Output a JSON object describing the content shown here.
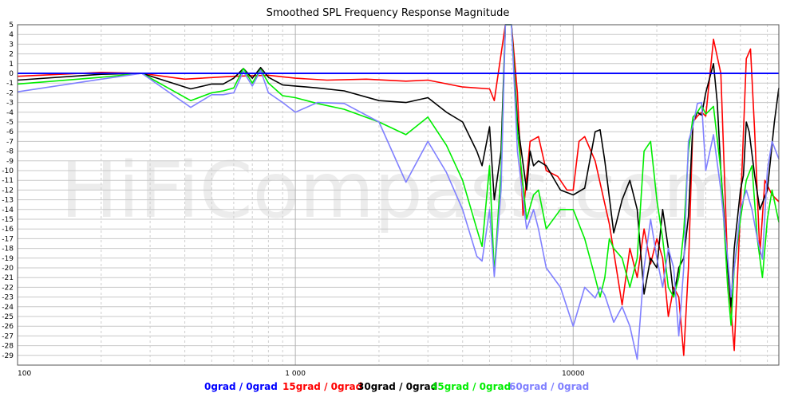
{
  "chart_data": {
    "type": "line",
    "title": "Smoothed SPL Frequency Response Magnitude",
    "watermark": "HiFiCompass.com",
    "xscale": "log",
    "xlim": [
      100,
      55000
    ],
    "ylim": [
      -30,
      5
    ],
    "x_tick_labels": [
      {
        "x": 100,
        "label": "100"
      },
      {
        "x": 1000,
        "label": "1 000"
      },
      {
        "x": 10000,
        "label": "10000"
      }
    ],
    "y_ticks": [
      5,
      4,
      3,
      2,
      1,
      0,
      -1,
      -2,
      -3,
      -4,
      -5,
      -6,
      -7,
      -8,
      -9,
      -10,
      -11,
      -12,
      -13,
      -14,
      -15,
      -16,
      -17,
      -18,
      -19,
      -20,
      -21,
      -22,
      -23,
      -24,
      -25,
      -26,
      -27,
      -28,
      -29
    ],
    "grid": true,
    "legend_position": "bottom",
    "series": [
      {
        "name": "0grad / 0grad",
        "color": "#0000ff",
        "points": [
          [
            100,
            0
          ],
          [
            55000,
            0
          ]
        ]
      },
      {
        "name": "15grad / 0grad",
        "color": "#ff0000",
        "points": [
          [
            100,
            -0.3
          ],
          [
            200,
            0.1
          ],
          [
            280,
            0
          ],
          [
            400,
            -0.6
          ],
          [
            600,
            -0.3
          ],
          [
            800,
            -0.2
          ],
          [
            1000,
            -0.5
          ],
          [
            1300,
            -0.7
          ],
          [
            1800,
            -0.6
          ],
          [
            2500,
            -0.8
          ],
          [
            3000,
            -0.7
          ],
          [
            4000,
            -1.4
          ],
          [
            5000,
            -1.6
          ],
          [
            5200,
            -2.8
          ],
          [
            5700,
            5
          ],
          [
            6000,
            5
          ],
          [
            6300,
            -2
          ],
          [
            6600,
            -14.6
          ],
          [
            7000,
            -7
          ],
          [
            7500,
            -6.5
          ],
          [
            8000,
            -10
          ],
          [
            8800,
            -10.6
          ],
          [
            9500,
            -12
          ],
          [
            10000,
            -12
          ],
          [
            10500,
            -7
          ],
          [
            11000,
            -6.5
          ],
          [
            12000,
            -9
          ],
          [
            13500,
            -15.5
          ],
          [
            15000,
            -23.8
          ],
          [
            16000,
            -18
          ],
          [
            17000,
            -21
          ],
          [
            18000,
            -16
          ],
          [
            19000,
            -19.6
          ],
          [
            20000,
            -17
          ],
          [
            21000,
            -19
          ],
          [
            22000,
            -25
          ],
          [
            23000,
            -22
          ],
          [
            24000,
            -23
          ],
          [
            25000,
            -29
          ],
          [
            26000,
            -20
          ],
          [
            27000,
            -5
          ],
          [
            28000,
            -4.4
          ],
          [
            29000,
            -4
          ],
          [
            30000,
            -4.4
          ],
          [
            32000,
            3.5
          ],
          [
            34000,
            0
          ],
          [
            36000,
            -20
          ],
          [
            38000,
            -28.5
          ],
          [
            40000,
            -14
          ],
          [
            42000,
            1.5
          ],
          [
            43500,
            2.5
          ],
          [
            45000,
            -6
          ],
          [
            47000,
            -18.6
          ],
          [
            49000,
            -11
          ],
          [
            52000,
            -12.5
          ],
          [
            55000,
            -13.2
          ]
        ]
      },
      {
        "name": "30grad / 0grad",
        "color": "#000000",
        "points": [
          [
            100,
            -0.7
          ],
          [
            200,
            -0.1
          ],
          [
            280,
            0
          ],
          [
            420,
            -1.6
          ],
          [
            500,
            -1.1
          ],
          [
            550,
            -1.1
          ],
          [
            600,
            -0.5
          ],
          [
            650,
            0.5
          ],
          [
            700,
            -0.5
          ],
          [
            750,
            0.6
          ],
          [
            800,
            -0.4
          ],
          [
            900,
            -1.2
          ],
          [
            1000,
            -1.3
          ],
          [
            1200,
            -1.5
          ],
          [
            1500,
            -1.8
          ],
          [
            2000,
            -2.8
          ],
          [
            2500,
            -3
          ],
          [
            3000,
            -2.5
          ],
          [
            3500,
            -4
          ],
          [
            4000,
            -5
          ],
          [
            4500,
            -8
          ],
          [
            4700,
            -9.5
          ],
          [
            5000,
            -5.5
          ],
          [
            5200,
            -13
          ],
          [
            5500,
            -8
          ],
          [
            5700,
            5
          ],
          [
            6000,
            5
          ],
          [
            6300,
            -5
          ],
          [
            6800,
            -12
          ],
          [
            7000,
            -8
          ],
          [
            7200,
            -9.5
          ],
          [
            7500,
            -9
          ],
          [
            8000,
            -9.5
          ],
          [
            9000,
            -12
          ],
          [
            10000,
            -12.5
          ],
          [
            11000,
            -11.8
          ],
          [
            12000,
            -6
          ],
          [
            12500,
            -5.8
          ],
          [
            13000,
            -9
          ],
          [
            14000,
            -16.4
          ],
          [
            15000,
            -13
          ],
          [
            16000,
            -11
          ],
          [
            17000,
            -14
          ],
          [
            18000,
            -22.7
          ],
          [
            19000,
            -19
          ],
          [
            20000,
            -20
          ],
          [
            21000,
            -14
          ],
          [
            22000,
            -18
          ],
          [
            23000,
            -23
          ],
          [
            24000,
            -20
          ],
          [
            25000,
            -19
          ],
          [
            26000,
            -14.7
          ],
          [
            27000,
            -5
          ],
          [
            28000,
            -4
          ],
          [
            29000,
            -4.3
          ],
          [
            30000,
            -2
          ],
          [
            32000,
            1
          ],
          [
            33000,
            -3
          ],
          [
            34000,
            -10
          ],
          [
            36000,
            -20
          ],
          [
            37000,
            -24
          ],
          [
            38000,
            -18
          ],
          [
            40000,
            -12
          ],
          [
            41000,
            -10.5
          ],
          [
            42000,
            -5
          ],
          [
            43000,
            -6
          ],
          [
            45000,
            -10.5
          ],
          [
            47000,
            -14
          ],
          [
            50000,
            -12
          ],
          [
            53000,
            -5
          ],
          [
            55000,
            -1.5
          ]
        ]
      },
      {
        "name": "45grad / 0grad",
        "color": "#00ee00",
        "points": [
          [
            100,
            -1.1
          ],
          [
            200,
            -0.4
          ],
          [
            280,
            0
          ],
          [
            420,
            -2.8
          ],
          [
            500,
            -2
          ],
          [
            550,
            -1.8
          ],
          [
            600,
            -1.5
          ],
          [
            650,
            0.5
          ],
          [
            700,
            -1
          ],
          [
            750,
            0.4
          ],
          [
            800,
            -1
          ],
          [
            900,
            -2.3
          ],
          [
            1000,
            -2.5
          ],
          [
            1200,
            -3.1
          ],
          [
            1500,
            -3.7
          ],
          [
            2000,
            -5
          ],
          [
            2500,
            -6.3
          ],
          [
            3000,
            -4.5
          ],
          [
            3500,
            -7.4
          ],
          [
            4000,
            -11
          ],
          [
            4500,
            -16
          ],
          [
            4700,
            -17.8
          ],
          [
            5000,
            -9.5
          ],
          [
            5200,
            -20.6
          ],
          [
            5500,
            -10
          ],
          [
            5700,
            5
          ],
          [
            6000,
            5
          ],
          [
            6300,
            -6
          ],
          [
            6800,
            -15
          ],
          [
            7200,
            -12.5
          ],
          [
            7500,
            -12
          ],
          [
            8000,
            -16
          ],
          [
            9000,
            -14
          ],
          [
            10000,
            -14
          ],
          [
            11000,
            -17
          ],
          [
            12000,
            -21
          ],
          [
            12500,
            -23
          ],
          [
            13000,
            -21
          ],
          [
            13500,
            -17
          ],
          [
            14000,
            -18
          ],
          [
            15000,
            -19
          ],
          [
            16000,
            -22
          ],
          [
            17000,
            -19
          ],
          [
            18000,
            -8
          ],
          [
            19000,
            -7
          ],
          [
            20000,
            -13
          ],
          [
            21000,
            -17
          ],
          [
            22000,
            -22
          ],
          [
            23000,
            -23
          ],
          [
            24000,
            -21
          ],
          [
            25000,
            -16.3
          ],
          [
            26000,
            -8
          ],
          [
            27000,
            -4.5
          ],
          [
            28000,
            -4
          ],
          [
            29000,
            -3.3
          ],
          [
            30000,
            -4.2
          ],
          [
            32000,
            -3.4
          ],
          [
            34000,
            -10
          ],
          [
            36000,
            -22
          ],
          [
            37000,
            -25.9
          ],
          [
            38000,
            -20
          ],
          [
            40000,
            -15
          ],
          [
            42000,
            -11
          ],
          [
            44000,
            -9.5
          ],
          [
            46000,
            -17
          ],
          [
            48000,
            -21
          ],
          [
            50000,
            -15
          ],
          [
            52000,
            -12
          ],
          [
            55000,
            -15.3
          ]
        ]
      },
      {
        "name": "60grad / 0grad",
        "color": "#8080ff",
        "points": [
          [
            100,
            -1.9
          ],
          [
            200,
            -0.6
          ],
          [
            280,
            0
          ],
          [
            420,
            -3.5
          ],
          [
            500,
            -2.2
          ],
          [
            550,
            -2.2
          ],
          [
            600,
            -2
          ],
          [
            650,
            0.2
          ],
          [
            700,
            -1.3
          ],
          [
            750,
            0.3
          ],
          [
            800,
            -2
          ],
          [
            900,
            -3
          ],
          [
            1000,
            -4
          ],
          [
            1200,
            -3
          ],
          [
            1500,
            -3.1
          ],
          [
            2000,
            -5
          ],
          [
            2500,
            -11.2
          ],
          [
            3000,
            -7
          ],
          [
            3500,
            -10.2
          ],
          [
            4000,
            -14
          ],
          [
            4500,
            -18.8
          ],
          [
            4700,
            -19.3
          ],
          [
            5000,
            -14
          ],
          [
            5200,
            -20.9
          ],
          [
            5500,
            -12
          ],
          [
            5700,
            5
          ],
          [
            6000,
            5
          ],
          [
            6300,
            -8
          ],
          [
            6800,
            -16
          ],
          [
            7200,
            -14
          ],
          [
            7500,
            -16
          ],
          [
            8000,
            -20
          ],
          [
            9000,
            -22
          ],
          [
            10000,
            -26
          ],
          [
            11000,
            -22
          ],
          [
            12000,
            -23.1
          ],
          [
            12500,
            -22
          ],
          [
            13000,
            -22.8
          ],
          [
            14000,
            -25.6
          ],
          [
            15000,
            -24
          ],
          [
            16000,
            -26
          ],
          [
            17000,
            -29.4
          ],
          [
            18000,
            -20
          ],
          [
            19000,
            -15
          ],
          [
            20000,
            -19
          ],
          [
            21000,
            -22
          ],
          [
            22000,
            -18
          ],
          [
            23000,
            -20
          ],
          [
            24000,
            -27
          ],
          [
            25000,
            -20
          ],
          [
            26000,
            -7
          ],
          [
            27000,
            -5.4
          ],
          [
            28000,
            -3.1
          ],
          [
            29000,
            -3
          ],
          [
            30000,
            -10
          ],
          [
            32000,
            -6.3
          ],
          [
            34000,
            -12
          ],
          [
            36000,
            -19
          ],
          [
            37000,
            -23
          ],
          [
            38000,
            -20
          ],
          [
            40000,
            -14
          ],
          [
            42000,
            -12
          ],
          [
            44000,
            -14
          ],
          [
            46000,
            -17
          ],
          [
            48000,
            -19.1
          ],
          [
            50000,
            -10
          ],
          [
            52000,
            -7
          ],
          [
            55000,
            -8.8
          ]
        ]
      }
    ]
  }
}
